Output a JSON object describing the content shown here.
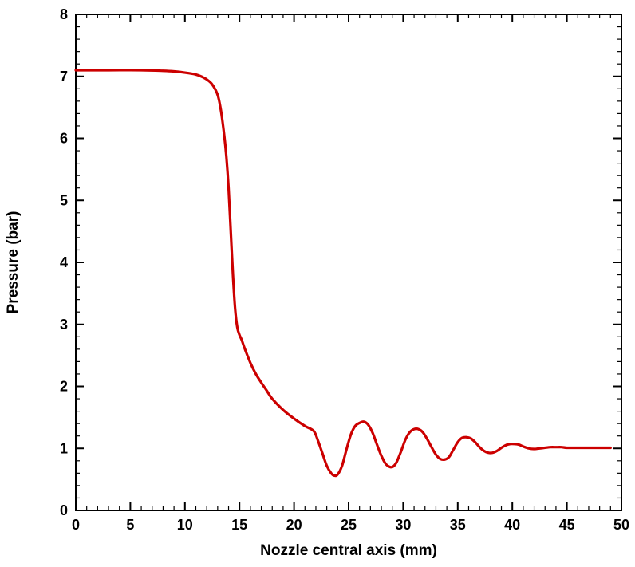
{
  "chart_data": {
    "type": "line",
    "title": "",
    "xlabel": "Nozzle central axis (mm)",
    "ylabel": "Pressure (bar)",
    "xlim": [
      0,
      50
    ],
    "ylim": [
      0,
      8
    ],
    "x_ticks": [
      "0",
      "5",
      "10",
      "15",
      "20",
      "25",
      "30",
      "35",
      "40",
      "45",
      "50"
    ],
    "y_ticks": [
      "0",
      "1",
      "2",
      "3",
      "4",
      "5",
      "6",
      "7",
      "8"
    ],
    "grid": false,
    "legend": "none",
    "series": [
      {
        "color": "#cc0000",
        "x": [
          0,
          3,
          6,
          8,
          9,
          10,
          11,
          11.6,
          12,
          12.5,
          13,
          13.3,
          13.6,
          13.8,
          14.0,
          14.2,
          14.4,
          14.6,
          14.8,
          15.0,
          15.2,
          15.5,
          16,
          16.5,
          17,
          17.5,
          18,
          19,
          20,
          21,
          21.8,
          22.2,
          22.6,
          23.0,
          23.4,
          23.7,
          24.0,
          24.4,
          24.8,
          25.2,
          25.6,
          26.0,
          26.4,
          26.8,
          27.2,
          27.6,
          28.0,
          28.4,
          28.8,
          29.1,
          29.4,
          29.8,
          30.2,
          30.6,
          31.0,
          31.4,
          31.8,
          32.2,
          32.6,
          33.0,
          33.4,
          33.8,
          34.2,
          34.6,
          35.0,
          35.4,
          35.8,
          36.2,
          36.6,
          37.0,
          37.4,
          37.8,
          38.2,
          38.6,
          39.0,
          39.4,
          39.8,
          40.2,
          40.6,
          41.0,
          41.5,
          42.0,
          42.5,
          43.0,
          43.5,
          44.0,
          44.5,
          45.0,
          46.0,
          47.0,
          48.0,
          49.0
        ],
        "values": [
          7.1,
          7.1,
          7.1,
          7.09,
          7.08,
          7.06,
          7.03,
          6.99,
          6.95,
          6.87,
          6.7,
          6.45,
          6.05,
          5.7,
          5.2,
          4.5,
          3.8,
          3.25,
          2.95,
          2.83,
          2.75,
          2.6,
          2.38,
          2.2,
          2.06,
          1.93,
          1.8,
          1.62,
          1.48,
          1.36,
          1.28,
          1.12,
          0.92,
          0.72,
          0.6,
          0.56,
          0.58,
          0.72,
          0.98,
          1.22,
          1.36,
          1.41,
          1.43,
          1.38,
          1.25,
          1.06,
          0.88,
          0.75,
          0.7,
          0.71,
          0.78,
          0.95,
          1.14,
          1.26,
          1.31,
          1.31,
          1.26,
          1.15,
          1.02,
          0.9,
          0.83,
          0.82,
          0.86,
          0.98,
          1.1,
          1.17,
          1.18,
          1.16,
          1.1,
          1.02,
          0.96,
          0.93,
          0.93,
          0.96,
          1.01,
          1.05,
          1.07,
          1.07,
          1.06,
          1.03,
          1.0,
          0.99,
          1.0,
          1.01,
          1.02,
          1.02,
          1.02,
          1.01,
          1.01,
          1.01,
          1.01,
          1.01
        ]
      }
    ]
  }
}
